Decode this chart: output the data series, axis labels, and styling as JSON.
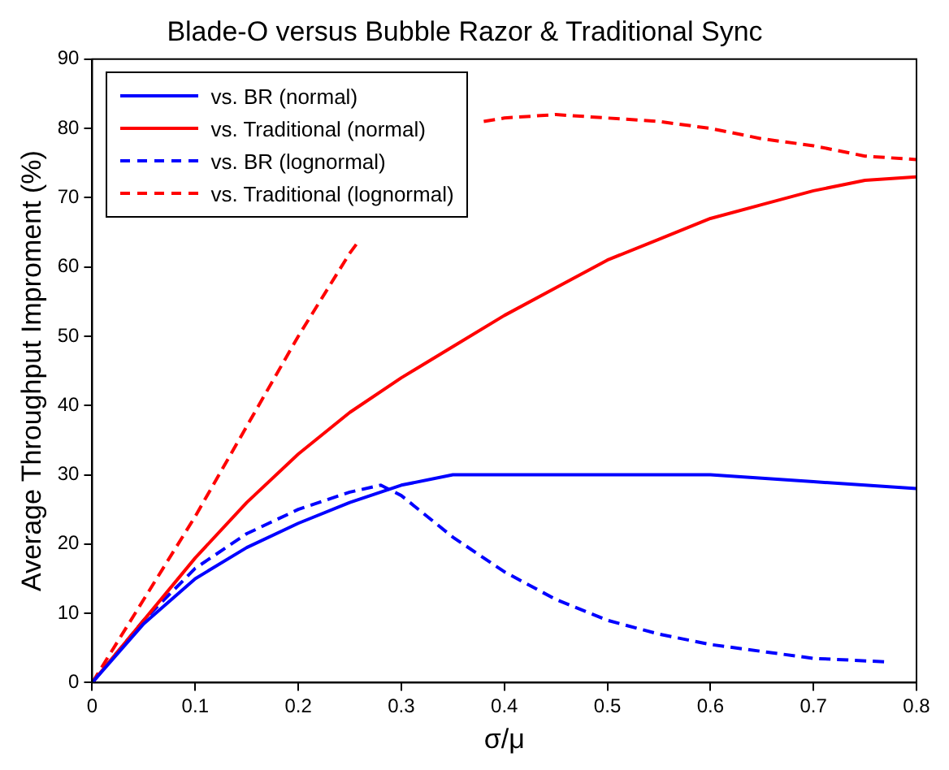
{
  "chart_data": {
    "type": "line",
    "title": "Blade-O versus Bubble Razor & Traditional Sync",
    "xlabel": "σ/μ",
    "ylabel": "Average Throughput Improment (%)",
    "xlim": [
      0,
      0.8
    ],
    "xticks": [
      0,
      0.1,
      0.2,
      0.3,
      0.4,
      0.5,
      0.6,
      0.7,
      0.8
    ],
    "ylim": [
      0,
      90
    ],
    "yticks": [
      0,
      10,
      20,
      30,
      40,
      50,
      60,
      70,
      80,
      90
    ],
    "grid": false,
    "legend": "top left",
    "marker": "none",
    "series": [
      {
        "name": "vs. BR (normal)",
        "color": "#0000ff",
        "line_style": "solid",
        "x": [
          0,
          0.05,
          0.1,
          0.15,
          0.2,
          0.25,
          0.3,
          0.35,
          0.4,
          0.45,
          0.5,
          0.55,
          0.6,
          0.65,
          0.7,
          0.75,
          0.8
        ],
        "values": [
          0,
          8.5,
          15,
          19.5,
          23,
          26,
          28.5,
          30,
          30,
          30,
          30,
          30,
          30,
          29.5,
          29,
          28.5,
          28
        ]
      },
      {
        "name": "vs. Traditional (normal)",
        "color": "#ff0000",
        "line_style": "solid",
        "x": [
          0,
          0.05,
          0.1,
          0.15,
          0.2,
          0.25,
          0.3,
          0.35,
          0.4,
          0.45,
          0.5,
          0.55,
          0.6,
          0.65,
          0.7,
          0.75,
          0.8
        ],
        "values": [
          0,
          9,
          18,
          26,
          33,
          39,
          44,
          48.5,
          53,
          57,
          61,
          64,
          67,
          69,
          71,
          72.5,
          73
        ]
      },
      {
        "name": "vs. BR (lognormal)",
        "color": "#0000ff",
        "line_style": "dashed",
        "x": [
          0,
          0.05,
          0.1,
          0.15,
          0.2,
          0.25,
          0.28,
          0.3,
          0.35,
          0.4,
          0.45,
          0.5,
          0.55,
          0.6,
          0.65,
          0.7,
          0.77
        ],
        "values": [
          0,
          9,
          16.5,
          21.5,
          25,
          27.5,
          28.5,
          27,
          21,
          16,
          12,
          9,
          7,
          5.5,
          4.5,
          3.5,
          3
        ]
      },
      {
        "name": "vs. Traditional (lognormal)",
        "color": "#ff0000",
        "line_style": "dashed",
        "x": [
          0,
          0.05,
          0.1,
          0.15,
          0.2,
          0.25,
          0.26,
          0.32,
          0.38,
          0.4,
          0.45,
          0.5,
          0.55,
          0.6,
          0.65,
          0.7,
          0.75,
          0.8
        ],
        "values": [
          0,
          12,
          24,
          37,
          50,
          62,
          64,
          null,
          81,
          81.5,
          82,
          81.5,
          81,
          80,
          78.5,
          77.5,
          76,
          75.5
        ]
      }
    ]
  }
}
